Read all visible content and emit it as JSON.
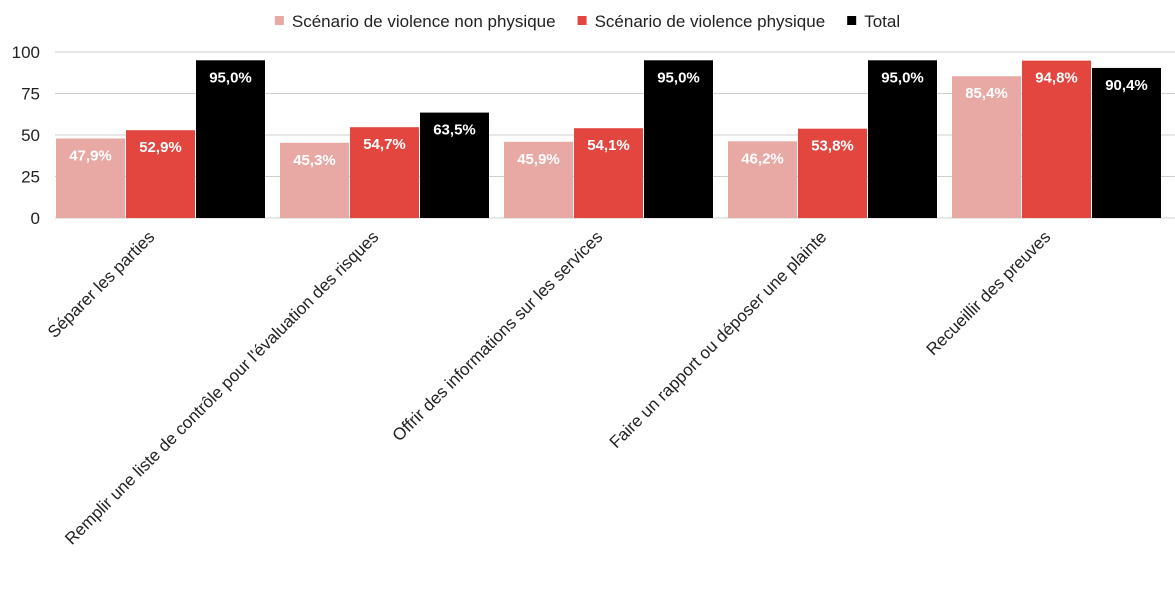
{
  "chart_data": {
    "type": "bar",
    "categories": [
      "Séparer les parties",
      "Remplir une liste de contrôle pour l'évaluation des risques",
      "Offrir des informations sur les services",
      "Faire un rapport ou déposer une plainte",
      "Recueillir des preuves"
    ],
    "series": [
      {
        "name": "Scénario de violence non physique",
        "color": "#e8a9a5",
        "values": [
          47.9,
          45.3,
          45.9,
          46.2,
          85.4
        ],
        "labels": [
          "47,9%",
          "45,3%",
          "45,9%",
          "46,2%",
          "85,4%"
        ]
      },
      {
        "name": "Scénario de violence physique",
        "color": "#e2463f",
        "values": [
          52.9,
          54.7,
          54.1,
          53.8,
          94.8
        ],
        "labels": [
          "52,9%",
          "54,7%",
          "54,1%",
          "53,8%",
          "94,8%"
        ]
      },
      {
        "name": "Total",
        "color": "#000000",
        "values": [
          95.0,
          63.5,
          95.0,
          95.0,
          90.4
        ],
        "labels": [
          "95,0%",
          "63,5%",
          "95,0%",
          "95,0%",
          "90,4%"
        ]
      }
    ],
    "y_ticks": [
      "0",
      "25",
      "50",
      "75",
      "100"
    ],
    "y_tick_values": [
      0,
      25,
      50,
      75,
      100
    ],
    "ylim": [
      0,
      100
    ],
    "grid": true,
    "legend_position": "top-center"
  }
}
